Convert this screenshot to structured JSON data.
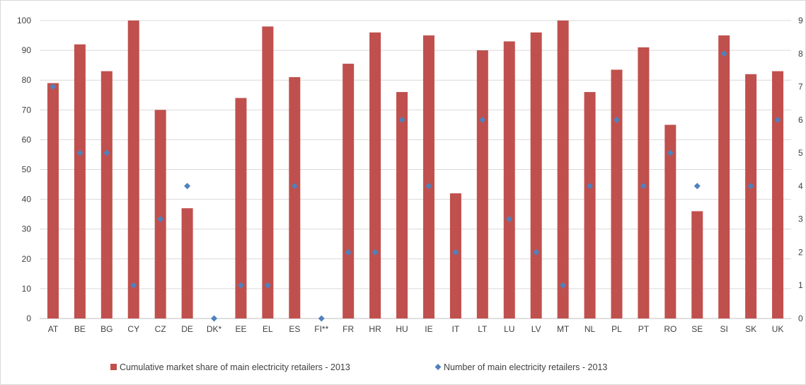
{
  "chart_data": {
    "type": "bar",
    "title": "",
    "xlabel": "",
    "ylabel": "",
    "categories": [
      "AT",
      "BE",
      "BG",
      "CY",
      "CZ",
      "DE",
      "DK*",
      "EE",
      "EL",
      "ES",
      "FI**",
      "FR",
      "HR",
      "HU",
      "IE",
      "IT",
      "LT",
      "LU",
      "LV",
      "MT",
      "NL",
      "PL",
      "PT",
      "RO",
      "SE",
      "SI",
      "SK",
      "UK"
    ],
    "series": [
      {
        "name": "Cumulative market share of main electricity retailers - 2013",
        "type": "bar",
        "axis": "left",
        "color": "#c0504d",
        "values": [
          79,
          92,
          83,
          100,
          70,
          37,
          null,
          74,
          98,
          81,
          null,
          85.5,
          96,
          76,
          95,
          42,
          90,
          93,
          96,
          100,
          76,
          83.5,
          91,
          65,
          36,
          95,
          82,
          83
        ]
      },
      {
        "name": "Number of main electricity retailers - 2013",
        "type": "scatter",
        "axis": "right",
        "color": "#4f81bd",
        "marker": "diamond",
        "values": [
          7,
          5,
          5,
          1,
          3,
          4,
          0,
          1,
          1,
          4,
          0,
          2,
          2,
          6,
          4,
          2,
          6,
          3,
          2,
          1,
          4,
          6,
          4,
          5,
          4,
          8,
          4,
          6
        ]
      }
    ],
    "ylim": [
      0,
      100
    ],
    "y_ticks": [
      "0",
      "10",
      "20",
      "30",
      "40",
      "50",
      "60",
      "70",
      "80",
      "90",
      "100"
    ],
    "y2lim": [
      0,
      9
    ],
    "y2_ticks": [
      "0",
      "1",
      "2",
      "3",
      "4",
      "5",
      "6",
      "7",
      "8",
      "9"
    ],
    "grid": true,
    "legend_position": "bottom"
  }
}
